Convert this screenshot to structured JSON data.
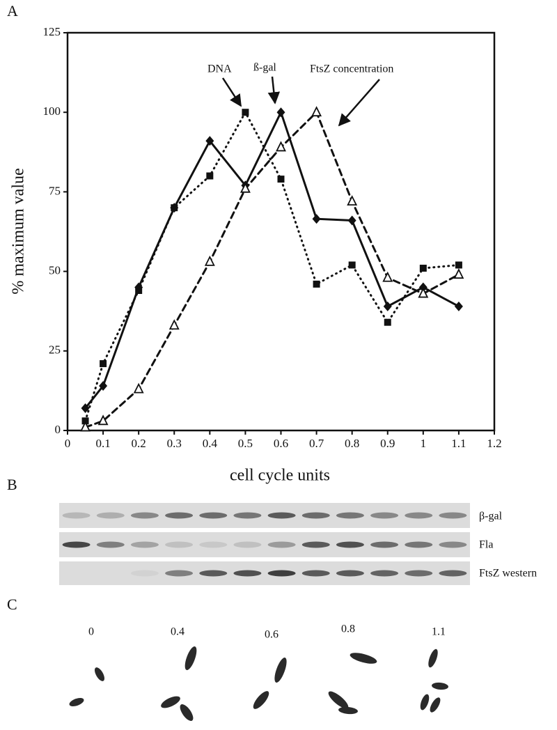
{
  "chart_data": {
    "type": "line",
    "x_label": "cell cycle units",
    "y_label": "% maximum value",
    "xlim": [
      0,
      1.2
    ],
    "xticks": [
      0,
      0.1,
      0.2,
      0.3,
      0.4,
      0.5,
      0.6,
      0.7,
      0.8,
      0.9,
      1,
      1.1,
      1.2
    ],
    "ylim": [
      0,
      125
    ],
    "yticks": [
      0,
      25,
      50,
      75,
      100,
      125
    ],
    "x": [
      0.05,
      0.1,
      0.2,
      0.3,
      0.4,
      0.5,
      0.6,
      0.7,
      0.8,
      0.9,
      1,
      1.1
    ],
    "series": [
      {
        "name": "DNA",
        "color": "#111111",
        "line_style": "dotted",
        "marker": "square",
        "values": [
          3,
          21,
          44,
          70,
          80,
          100,
          79,
          46,
          52,
          34,
          51,
          52
        ]
      },
      {
        "name": "ß-gal",
        "color": "#111111",
        "line_style": "solid",
        "marker": "diamond",
        "values": [
          7,
          14,
          45,
          70,
          91,
          77,
          100,
          66.5,
          66,
          39,
          45,
          39
        ]
      },
      {
        "name": "FtsZ concentration",
        "color": "#111111",
        "line_style": "dashed",
        "marker": "triangle",
        "values": [
          1,
          3,
          13,
          33,
          53,
          76,
          89,
          100,
          72,
          48,
          43,
          49
        ]
      }
    ]
  },
  "figure": {
    "panel_labels": [
      "A",
      "B",
      "C"
    ],
    "blot_labels": [
      "β-gal",
      "Fla",
      "FtsZ western"
    ],
    "time_labels": [
      "0",
      "0.4",
      "0.6",
      "0.8",
      "1.1"
    ]
  }
}
